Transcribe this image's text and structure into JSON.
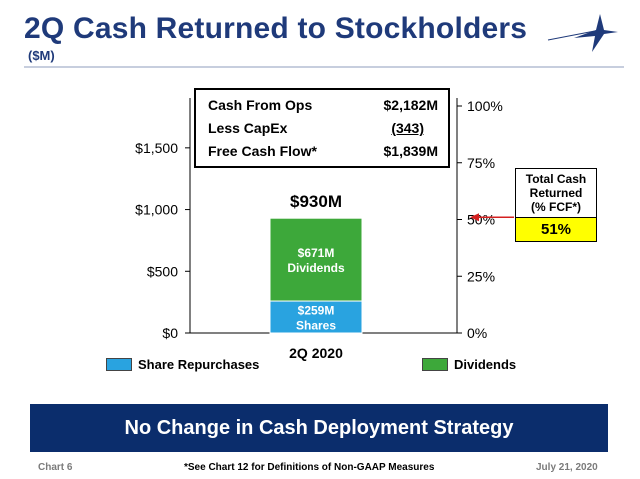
{
  "header": {
    "title": "2Q Cash Returned to Stockholders",
    "subtitle": "($M)"
  },
  "cash_flow_box": {
    "rows": [
      {
        "label": "Cash From Ops",
        "value": "$2,182M"
      },
      {
        "label": "Less CapEx",
        "value": "(343)"
      },
      {
        "label": "Free Cash Flow*",
        "value": "$1,839M"
      }
    ]
  },
  "returned_box": {
    "title_lines": [
      "Total Cash",
      "Returned",
      "(% FCF*)"
    ],
    "value": "51%",
    "value_color": "#ffff00"
  },
  "legend": {
    "share_repurchases": "Share Repurchases",
    "dividends": "Dividends"
  },
  "banner": {
    "text": "No Change in Cash Deployment Strategy",
    "color": "#0b2d6c"
  },
  "footer": {
    "left": "Chart 6",
    "center": "*See Chart 12 for Definitions of Non-GAAP Measures",
    "right": "July 21, 2020"
  },
  "chart_data": {
    "type": "bar",
    "stacked": true,
    "categories": [
      "2Q 2020"
    ],
    "series": [
      {
        "name": "Share Repurchases",
        "values": [
          259
        ],
        "color": "#29a3e0",
        "label_lines": [
          "$259M",
          "Shares"
        ]
      },
      {
        "name": "Dividends",
        "values": [
          671
        ],
        "color": "#3da83a",
        "label_lines": [
          "$671M",
          "Dividends"
        ]
      }
    ],
    "total_label": "$930M",
    "ylim": [
      0,
      1839
    ],
    "y_ticks": [
      0,
      500,
      1000,
      1500
    ],
    "y_tick_labels": [
      "$0",
      "$500",
      "$1,000",
      "$1,500"
    ],
    "y2_ticks": [
      0,
      0.25,
      0.5,
      0.75,
      1.0
    ],
    "y2_tick_labels": [
      "0%",
      "25%",
      "50%",
      "75%",
      "100%"
    ],
    "pct_of_fcf_returned": 0.51,
    "grid": false
  }
}
